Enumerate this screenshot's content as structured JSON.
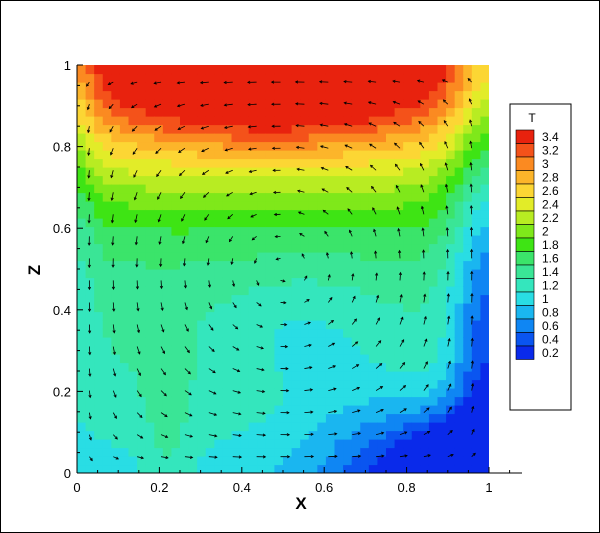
{
  "chart_data": {
    "type": "contour",
    "xlabel": "X",
    "ylabel": "Z",
    "xlim": [
      0,
      1
    ],
    "ylim": [
      0,
      1
    ],
    "xticks": [
      "0",
      "0.2",
      "0.4",
      "0.6",
      "0.8",
      "1"
    ],
    "yticks": [
      "0",
      "0.2",
      "0.4",
      "0.6",
      "0.8",
      "1"
    ],
    "xtick_values": [
      0,
      0.2,
      0.4,
      0.6,
      0.8,
      1
    ],
    "ytick_values": [
      0,
      0.2,
      0.4,
      0.6,
      0.8,
      1
    ],
    "legend": {
      "title": "T",
      "placement": "right",
      "levels": [
        {
          "label": "3.4",
          "value": 3.4,
          "color": "#e8220e"
        },
        {
          "label": "3.2",
          "value": 3.2,
          "color": "#f4521a"
        },
        {
          "label": "3",
          "value": 3.0,
          "color": "#fb8a21"
        },
        {
          "label": "2.8",
          "value": 2.8,
          "color": "#fcb52a"
        },
        {
          "label": "2.6",
          "value": 2.6,
          "color": "#fcd634"
        },
        {
          "label": "2.4",
          "value": 2.4,
          "color": "#e2ec28"
        },
        {
          "label": "2.2",
          "value": 2.2,
          "color": "#b8ec22"
        },
        {
          "label": "2",
          "value": 2.0,
          "color": "#7fe81a"
        },
        {
          "label": "1.8",
          "value": 1.8,
          "color": "#3ee414"
        },
        {
          "label": "1.6",
          "value": 1.6,
          "color": "#3be46a"
        },
        {
          "label": "1.4",
          "value": 1.4,
          "color": "#3ae596"
        },
        {
          "label": "1.2",
          "value": 1.2,
          "color": "#34e6bd"
        },
        {
          "label": "1",
          "value": 1.0,
          "color": "#29dde4"
        },
        {
          "label": "0.8",
          "value": 0.8,
          "color": "#1ab6f0"
        },
        {
          "label": "0.6",
          "value": 0.6,
          "color": "#0f86f3"
        },
        {
          "label": "0.4",
          "value": 0.4,
          "color": "#0a55f0"
        },
        {
          "label": "0.2",
          "value": 0.2,
          "color": "#0a2aea"
        }
      ]
    },
    "vector_field": true
  }
}
